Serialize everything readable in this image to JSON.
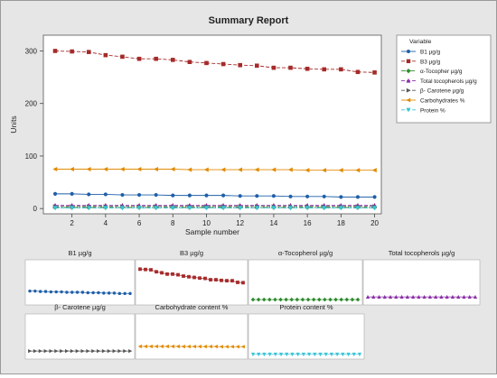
{
  "report_title": "Summary Report",
  "chart_data": [
    {
      "type": "line",
      "xlabel": "Sample number",
      "ylabel": "Units",
      "x": [
        1,
        2,
        3,
        4,
        5,
        6,
        7,
        8,
        9,
        10,
        11,
        12,
        13,
        14,
        15,
        16,
        17,
        18,
        19,
        20
      ],
      "xlim": [
        0.3,
        20.4
      ],
      "ylim": [
        -10,
        330
      ],
      "xticks": [
        2,
        4,
        6,
        8,
        10,
        12,
        14,
        16,
        18,
        20
      ],
      "yticks": [
        0,
        100,
        200,
        300
      ],
      "grid": false,
      "legend_title": "Variable",
      "legend_position": "right",
      "series": [
        {
          "name": "B1 µg/g",
          "color": "#1f5fa8",
          "marker": "circle",
          "dash": "solid",
          "values": [
            28,
            28,
            27,
            27,
            26,
            26,
            26,
            25,
            25,
            25,
            25,
            24,
            24,
            24,
            23,
            23,
            23,
            22,
            22,
            22
          ]
        },
        {
          "name": "B3 µg/g",
          "color": "#a52a2a",
          "marker": "square",
          "dash": "dashed",
          "values": [
            300,
            299,
            298,
            292,
            289,
            285,
            285,
            283,
            279,
            277,
            275,
            273,
            272,
            268,
            268,
            266,
            265,
            265,
            260,
            259
          ]
        },
        {
          "name": "α-Tocopher µg/g",
          "color": "#2e8b2e",
          "marker": "diamond",
          "dash": "dashdot",
          "values": [
            2,
            2,
            2,
            2,
            2,
            2,
            2,
            2,
            2,
            2,
            2,
            2,
            2,
            2,
            2,
            2,
            2,
            2,
            2,
            2
          ]
        },
        {
          "name": "Total tocopherols µg/g",
          "color": "#8b2fa8",
          "marker": "triangle-up",
          "dash": "dashed",
          "values": [
            6,
            6,
            6,
            6,
            6,
            6,
            6,
            6,
            6,
            6,
            6,
            6,
            6,
            6,
            6,
            6,
            6,
            6,
            6,
            6
          ]
        },
        {
          "name": "β- Carotene µg/g",
          "color": "#555555",
          "marker": "triangle-right",
          "dash": "dashed",
          "values": [
            4,
            4,
            4,
            4,
            4,
            4,
            4,
            4,
            4,
            4,
            4,
            4,
            4,
            4,
            4,
            4,
            4,
            4,
            4,
            4
          ]
        },
        {
          "name": "Carbohydrates %",
          "color": "#e08a00",
          "marker": "triangle-left",
          "dash": "solid",
          "values": [
            75,
            75,
            75,
            75,
            75,
            75,
            75,
            75,
            74,
            74,
            74,
            74,
            74,
            74,
            74,
            73,
            73,
            73,
            73,
            73
          ]
        },
        {
          "name": "Protein %",
          "color": "#3ac5d8",
          "marker": "triangle-down",
          "dash": "dashed",
          "values": [
            1,
            1,
            1,
            1,
            1,
            1,
            1,
            1,
            1,
            1,
            1,
            1,
            1,
            1,
            1,
            1,
            1,
            1,
            1,
            1
          ]
        }
      ]
    },
    {
      "type": "line",
      "title": "B1 µg/g",
      "series_index": 0,
      "ylim": [
        0,
        100
      ]
    },
    {
      "type": "line",
      "title": "B3 µg/g",
      "series_index": 1,
      "ylim": [
        200,
        320
      ]
    },
    {
      "type": "line",
      "title": "α-Tocopherol µg/g",
      "series_index": 2,
      "ylim": [
        0,
        30
      ]
    },
    {
      "type": "line",
      "title": "Total tocopherols µg/g",
      "series_index": 3,
      "ylim": [
        0,
        45
      ]
    },
    {
      "type": "line",
      "title": "β- Carotene µg/g",
      "series_index": 4,
      "ylim": [
        0,
        30
      ]
    },
    {
      "type": "line",
      "title": "Carbohydrate content %",
      "series_index": 5,
      "ylim": [
        0,
        300
      ]
    },
    {
      "type": "line",
      "title": "Protein content  %",
      "series_index": 6,
      "ylim": [
        0,
        20
      ]
    }
  ]
}
